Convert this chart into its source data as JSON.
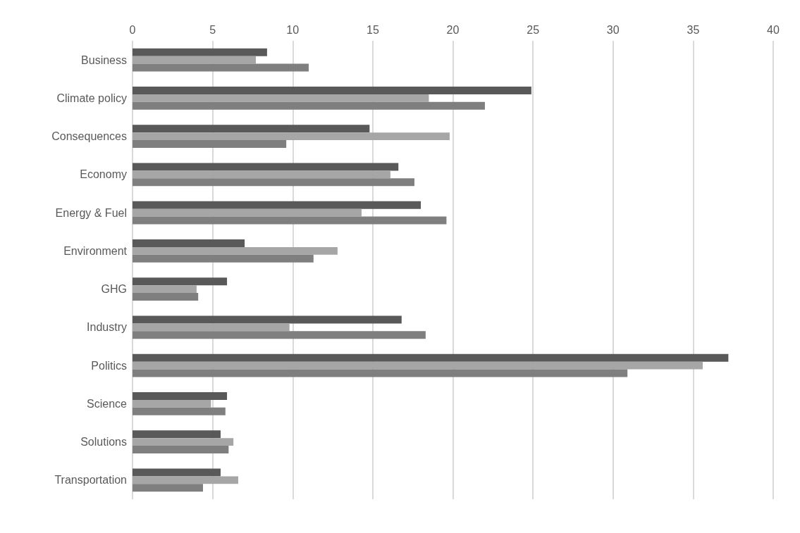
{
  "chart_data": {
    "type": "bar",
    "orientation": "horizontal",
    "categories": [
      "Business",
      "Climate policy",
      "Consequences",
      "Economy",
      "Energy & Fuel",
      "Environment",
      "GHG",
      "Industry",
      "Politics",
      "Science",
      "Solutions",
      "Transportation"
    ],
    "series": [
      {
        "color": "#595959",
        "values": [
          8.4,
          24.9,
          14.8,
          16.6,
          18.0,
          7.0,
          5.9,
          16.8,
          37.2,
          5.9,
          5.5,
          5.5
        ]
      },
      {
        "color": "#a6a6a6",
        "values": [
          7.7,
          18.5,
          19.8,
          16.1,
          14.3,
          12.8,
          4.0,
          9.8,
          35.6,
          4.9,
          6.3,
          6.6
        ]
      },
      {
        "color": "#7f7f7f",
        "values": [
          11.0,
          22.0,
          9.6,
          17.6,
          19.6,
          11.3,
          4.1,
          18.3,
          30.9,
          5.8,
          6.0,
          4.4
        ]
      }
    ],
    "xlim": [
      0,
      40
    ],
    "xticks": [
      0,
      5,
      10,
      15,
      20,
      25,
      30,
      35,
      40
    ],
    "grid": "x"
  }
}
